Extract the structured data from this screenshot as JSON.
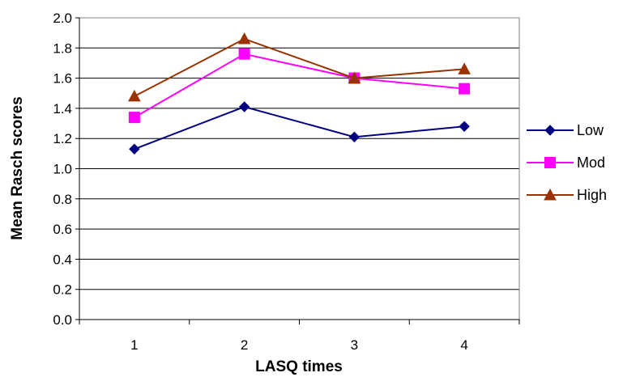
{
  "chart_data": {
    "type": "line",
    "title": "",
    "xlabel": "LASQ times",
    "ylabel": "Mean Rasch scores",
    "categories": [
      "1",
      "2",
      "3",
      "4"
    ],
    "ylim": [
      0,
      2
    ],
    "yticks": [
      "0.0",
      "0.2",
      "0.4",
      "0.6",
      "0.8",
      "1.0",
      "1.2",
      "1.4",
      "1.6",
      "1.8",
      "2.0"
    ],
    "grid": true,
    "legend_position": "right",
    "series": [
      {
        "name": "Low",
        "values": [
          1.13,
          1.41,
          1.21,
          1.28
        ],
        "color": "#000080",
        "marker": "diamond"
      },
      {
        "name": "Mod",
        "values": [
          1.34,
          1.76,
          1.6,
          1.53
        ],
        "color": "#FF00FF",
        "marker": "square"
      },
      {
        "name": "High",
        "values": [
          1.48,
          1.86,
          1.6,
          1.66
        ],
        "color": "#993300",
        "marker": "triangle"
      }
    ]
  }
}
